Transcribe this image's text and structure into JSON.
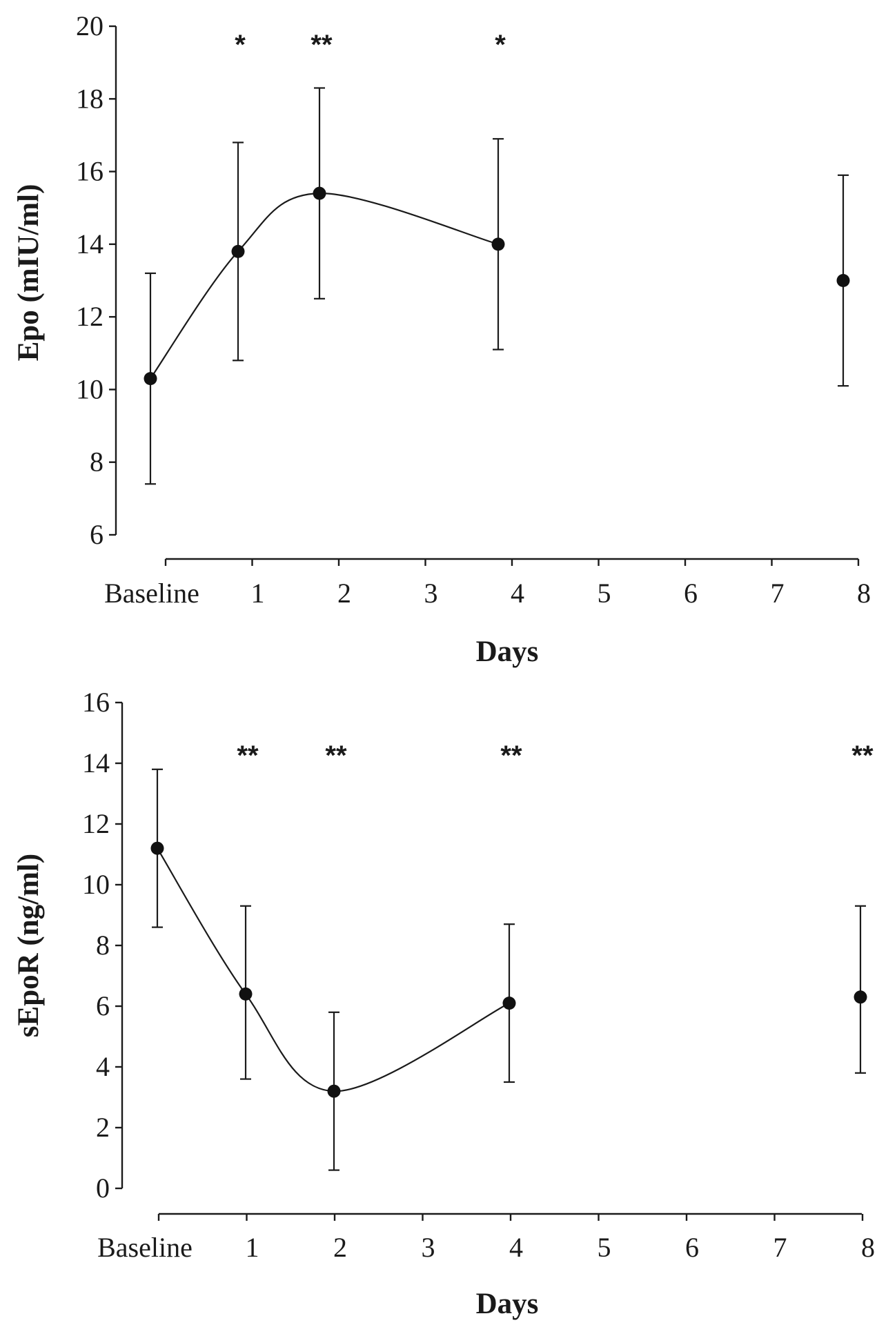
{
  "chart_data": [
    {
      "type": "line",
      "title": "",
      "xlabel": "Days",
      "ylabel": "Epo (mIU/ml)",
      "x_tick_labels": [
        "Baseline",
        "1",
        "2",
        "3",
        "4",
        "5",
        "6",
        "7",
        "8"
      ],
      "ylim": [
        6,
        20
      ],
      "y_ticks": [
        6,
        8,
        10,
        12,
        14,
        16,
        18,
        20
      ],
      "y_tick_labels": [
        "6",
        "8",
        "10",
        "12",
        "14",
        "16",
        "18",
        "20"
      ],
      "grid": false,
      "series": [
        {
          "points": [
            {
              "x": "Baseline",
              "y": 10.3,
              "err_low": 7.4,
              "err_high": 13.2,
              "connected": true,
              "significance": ""
            },
            {
              "x": "1",
              "y": 13.8,
              "err_low": 10.8,
              "err_high": 16.8,
              "connected": true,
              "significance": "*"
            },
            {
              "x": "2",
              "y": 15.4,
              "err_low": 12.5,
              "err_high": 18.3,
              "connected": true,
              "significance": "**"
            },
            {
              "x": "4",
              "y": 14.0,
              "err_low": 11.1,
              "err_high": 16.9,
              "connected": true,
              "significance": "*"
            },
            {
              "x": "8",
              "y": 13.0,
              "err_low": 10.1,
              "err_high": 15.9,
              "connected": false,
              "significance": ""
            }
          ]
        }
      ]
    },
    {
      "type": "line",
      "title": "",
      "xlabel": "Days",
      "ylabel": "sEpoR (ng/ml)",
      "x_tick_labels": [
        "Baseline",
        "1",
        "2",
        "3",
        "4",
        "5",
        "6",
        "7",
        "8"
      ],
      "ylim": [
        0,
        16
      ],
      "y_ticks": [
        0,
        2,
        4,
        6,
        8,
        10,
        12,
        14,
        16
      ],
      "y_tick_labels": [
        "0",
        "2",
        "4",
        "6",
        "8",
        "10",
        "12",
        "14",
        "16"
      ],
      "grid": false,
      "series": [
        {
          "points": [
            {
              "x": "Baseline",
              "y": 11.2,
              "err_low": 8.6,
              "err_high": 13.8,
              "connected": true,
              "significance": ""
            },
            {
              "x": "1",
              "y": 6.4,
              "err_low": 3.6,
              "err_high": 9.3,
              "connected": true,
              "significance": "**"
            },
            {
              "x": "2",
              "y": 3.2,
              "err_low": 0.6,
              "err_high": 5.8,
              "connected": true,
              "significance": "**"
            },
            {
              "x": "4",
              "y": 6.1,
              "err_low": 3.5,
              "err_high": 8.7,
              "connected": true,
              "significance": "**"
            },
            {
              "x": "8",
              "y": 6.3,
              "err_low": 3.8,
              "err_high": 9.3,
              "connected": false,
              "significance": "**"
            }
          ]
        }
      ]
    }
  ]
}
